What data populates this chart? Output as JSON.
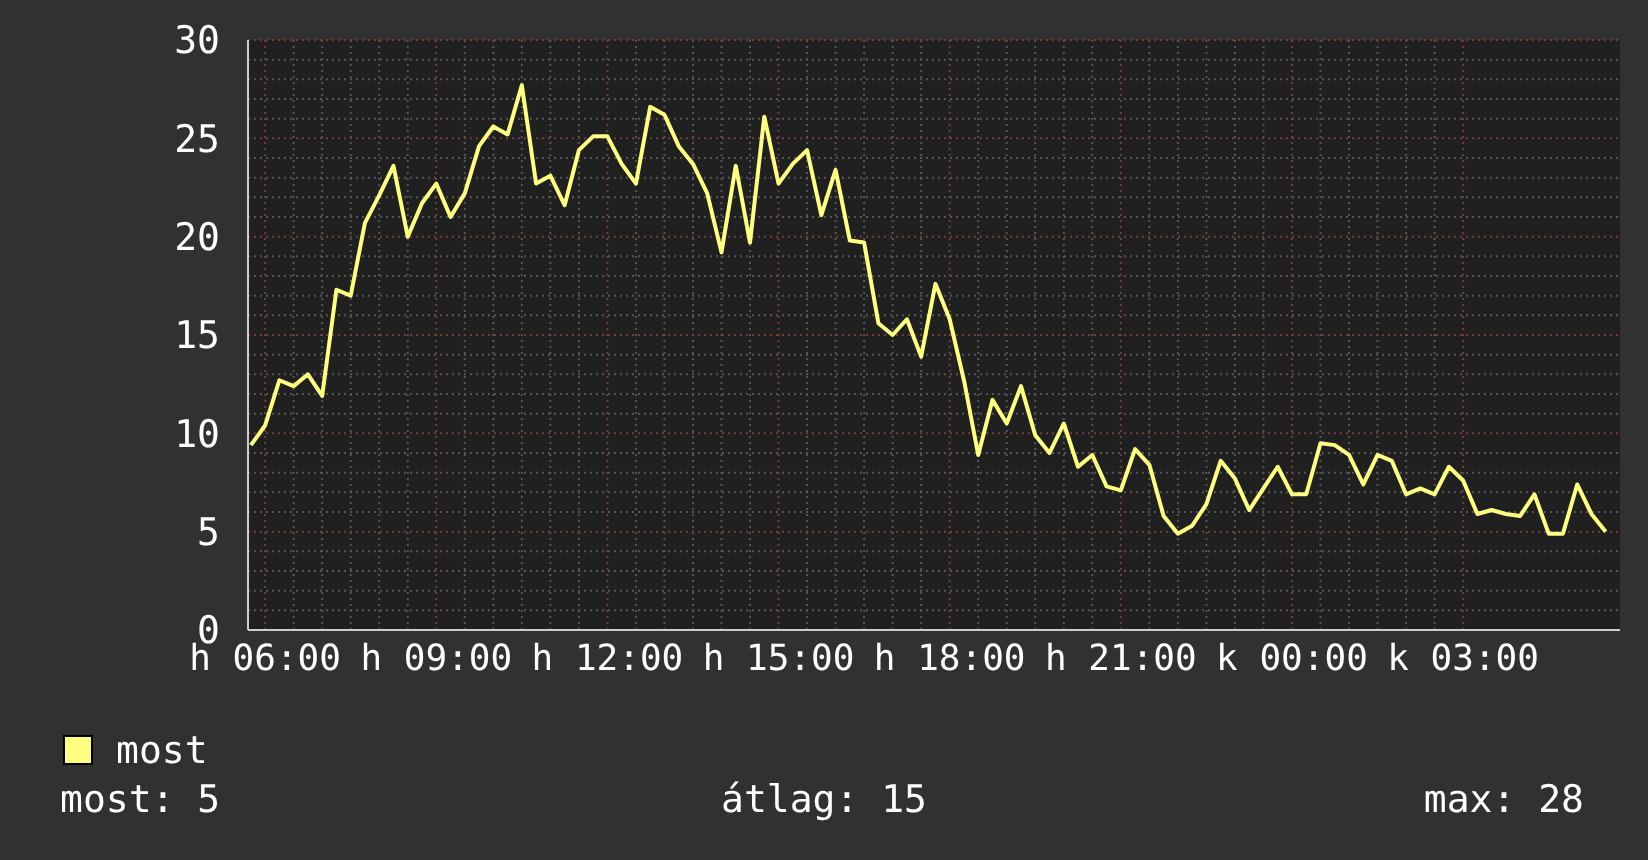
{
  "chart_data": {
    "type": "line",
    "ylim": [
      0,
      30
    ],
    "categories": [
      null,
      "h 06:00",
      null,
      null,
      null,
      null,
      null,
      null,
      null,
      null,
      null,
      null,
      null,
      "h 09:00",
      null,
      null,
      null,
      null,
      null,
      null,
      null,
      null,
      null,
      null,
      null,
      "h 12:00",
      null,
      null,
      null,
      null,
      null,
      null,
      null,
      null,
      null,
      null,
      null,
      "h 15:00",
      null,
      null,
      null,
      null,
      null,
      null,
      null,
      null,
      null,
      null,
      null,
      "h 18:00",
      null,
      null,
      null,
      null,
      null,
      null,
      null,
      null,
      null,
      null,
      null,
      "h 21:00",
      null,
      null,
      null,
      null,
      null,
      null,
      null,
      null,
      null,
      null,
      null,
      "k 00:00",
      null,
      null,
      null,
      null,
      null,
      null,
      null,
      null,
      null,
      null,
      null,
      "k 03:00",
      null,
      null,
      null,
      null,
      null,
      null,
      null,
      null,
      null,
      null
    ],
    "yticks": [
      0,
      5,
      10,
      15,
      20,
      25,
      30
    ],
    "grid": true,
    "legend": "bottom left",
    "marker": "none",
    "line_style": "solid",
    "annotations": [
      "most: 5",
      "átlag: 15",
      "max: 28"
    ],
    "series": [
      {
        "name": "most",
        "color": "#ffff80",
        "values": [
          9.4,
          10.4,
          12.7,
          12.4,
          13,
          11.9,
          17.3,
          17,
          20.7,
          22.1,
          23.6,
          20,
          21.7,
          22.7,
          21,
          22.2,
          24.6,
          25.6,
          25.2,
          27.7,
          22.7,
          23.1,
          21.6,
          24.4,
          25.1,
          25.1,
          23.7,
          22.7,
          26.6,
          26.2,
          24.6,
          23.7,
          22.2,
          19.2,
          23.6,
          19.7,
          26.1,
          22.7,
          23.7,
          24.4,
          21.1,
          23.4,
          19.8,
          19.7,
          15.6,
          15,
          15.8,
          13.9,
          17.6,
          15.8,
          12.7,
          8.9,
          11.7,
          10.5,
          12.4,
          9.9,
          9,
          10.5,
          8.3,
          8.9,
          7.3,
          7.1,
          9.2,
          8.4,
          5.8,
          4.9,
          5.3,
          6.4,
          8.6,
          7.7,
          6.1,
          7.2,
          8.3,
          6.9,
          6.9,
          9.5,
          9.4,
          8.9,
          7.4,
          8.9,
          8.6,
          6.9,
          7.2,
          6.9,
          8.3,
          7.6,
          5.9,
          6.1,
          5.9,
          5.8,
          6.9,
          4.9,
          4.9,
          7.4,
          5.9,
          5
        ]
      }
    ]
  }
}
